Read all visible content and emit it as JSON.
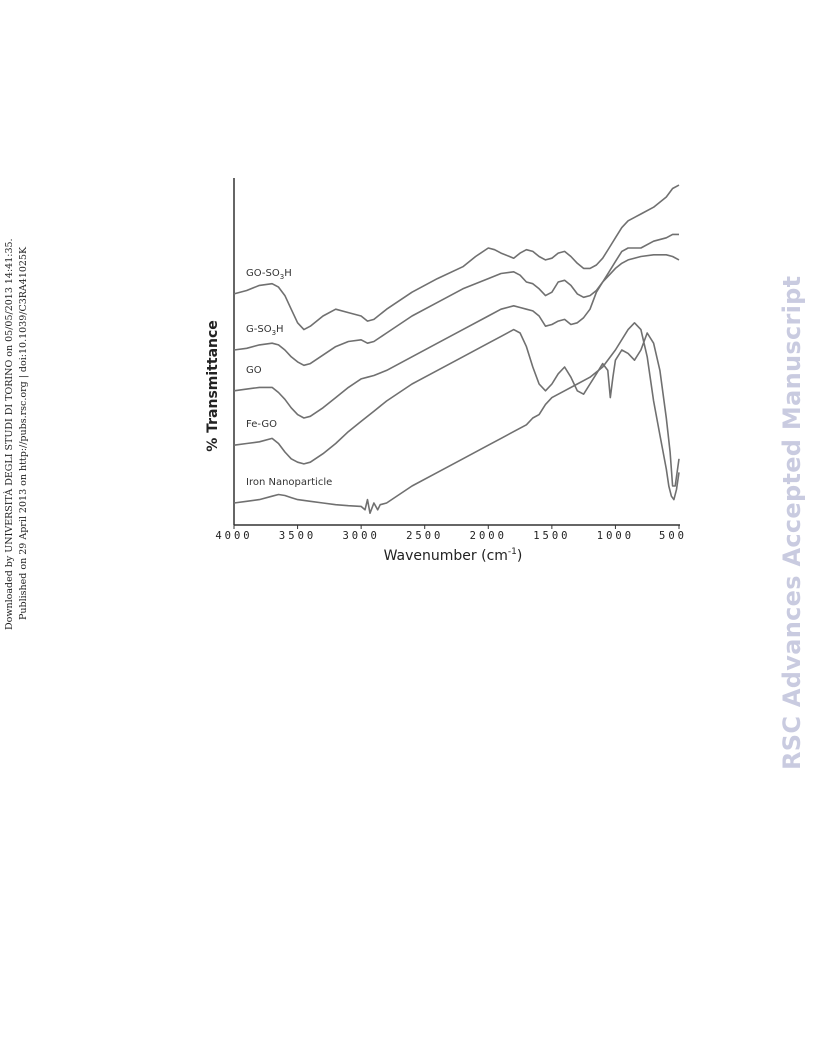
{
  "sidebar": {
    "line1": "Downloaded by UNIVERSITÀ DEGLI STUDI DI TORINO on 05/05/2013 14:41:35.",
    "line2": "Published on 29 April 2013 on http://pubs.rsc.org | doi:10.1039/C3RA41025K"
  },
  "watermark": "RSC Advances Accepted Manuscript",
  "chart_data": {
    "type": "line",
    "xlabel_main": "Wavenumber (cm",
    "xlabel_sup": "-1",
    "xlabel_close": ")",
    "ylabel": "% Transmittance",
    "xlim": [
      4000,
      500
    ],
    "x_reversed": true,
    "ylim": [
      0,
      1
    ],
    "y_tick_labels": false,
    "grid": false,
    "x_ticks": [
      {
        "v": 4000,
        "label": "4000"
      },
      {
        "v": 3500,
        "label": "3500"
      },
      {
        "v": 3000,
        "label": "3000"
      },
      {
        "v": 2500,
        "label": "2500"
      },
      {
        "v": 2000,
        "label": "2000"
      },
      {
        "v": 1500,
        "label": "1500"
      },
      {
        "v": 1000,
        "label": "1000"
      },
      {
        "v": 500,
        "label": "500"
      }
    ],
    "series_labels": [
      {
        "main": "GO-SO",
        "sub": "3",
        "tail": "H",
        "series": 0
      },
      {
        "main": "G-SO",
        "sub": "3",
        "tail": "H",
        "series": 1
      },
      {
        "main": "GO",
        "sub": "",
        "tail": "",
        "series": 2
      },
      {
        "main": "Fe-GO",
        "sub": "",
        "tail": "",
        "series": 3
      },
      {
        "main": "Iron Nanoparticle",
        "sub": "",
        "tail": "",
        "series": 4
      }
    ],
    "series": [
      {
        "x": [
          4000,
          3900,
          3800,
          3700,
          3650,
          3600,
          3550,
          3500,
          3450,
          3400,
          3300,
          3200,
          3100,
          3000,
          2950,
          2900,
          2800,
          2600,
          2400,
          2200,
          2100,
          2000,
          1950,
          1900,
          1800,
          1750,
          1700,
          1650,
          1600,
          1550,
          1500,
          1450,
          1400,
          1350,
          1300,
          1250,
          1200,
          1150,
          1100,
          1050,
          1000,
          950,
          900,
          800,
          700,
          600,
          550,
          500
        ],
        "y": [
          0.665,
          0.675,
          0.69,
          0.695,
          0.685,
          0.66,
          0.62,
          0.58,
          0.56,
          0.57,
          0.6,
          0.62,
          0.61,
          0.6,
          0.585,
          0.59,
          0.62,
          0.67,
          0.71,
          0.745,
          0.775,
          0.8,
          0.795,
          0.785,
          0.77,
          0.785,
          0.795,
          0.79,
          0.775,
          0.765,
          0.77,
          0.785,
          0.79,
          0.775,
          0.755,
          0.74,
          0.74,
          0.75,
          0.77,
          0.8,
          0.83,
          0.86,
          0.88,
          0.9,
          0.92,
          0.95,
          0.975,
          0.985
        ]
      },
      {
        "x": [
          4000,
          3900,
          3800,
          3700,
          3650,
          3600,
          3550,
          3500,
          3450,
          3400,
          3300,
          3200,
          3100,
          3000,
          2950,
          2900,
          2800,
          2600,
          2400,
          2200,
          2000,
          1900,
          1800,
          1750,
          1700,
          1650,
          1600,
          1550,
          1500,
          1450,
          1400,
          1350,
          1300,
          1250,
          1200,
          1150,
          1100,
          1050,
          1000,
          950,
          900,
          800,
          700,
          600,
          550,
          500
        ],
        "y": [
          0.5,
          0.505,
          0.515,
          0.52,
          0.515,
          0.5,
          0.48,
          0.465,
          0.455,
          0.46,
          0.485,
          0.51,
          0.525,
          0.53,
          0.52,
          0.525,
          0.55,
          0.6,
          0.64,
          0.68,
          0.71,
          0.725,
          0.73,
          0.72,
          0.7,
          0.695,
          0.68,
          0.66,
          0.67,
          0.7,
          0.705,
          0.69,
          0.665,
          0.655,
          0.66,
          0.675,
          0.7,
          0.73,
          0.76,
          0.79,
          0.8,
          0.8,
          0.82,
          0.83,
          0.84,
          0.84
        ]
      },
      {
        "x": [
          4000,
          3900,
          3800,
          3700,
          3650,
          3600,
          3550,
          3500,
          3450,
          3400,
          3300,
          3200,
          3100,
          3000,
          2950,
          2900,
          2800,
          2600,
          2400,
          2200,
          2000,
          1900,
          1800,
          1750,
          1700,
          1650,
          1600,
          1550,
          1500,
          1450,
          1400,
          1350,
          1300,
          1250,
          1200,
          1150,
          1100,
          1050,
          1000,
          950,
          900,
          800,
          700,
          600,
          550,
          500
        ],
        "y": [
          0.38,
          0.385,
          0.39,
          0.39,
          0.375,
          0.355,
          0.33,
          0.31,
          0.3,
          0.305,
          0.33,
          0.36,
          0.39,
          0.415,
          0.42,
          0.425,
          0.44,
          0.48,
          0.52,
          0.56,
          0.6,
          0.62,
          0.63,
          0.625,
          0.62,
          0.615,
          0.6,
          0.57,
          0.575,
          0.585,
          0.59,
          0.575,
          0.58,
          0.595,
          0.62,
          0.67,
          0.7,
          0.72,
          0.74,
          0.755,
          0.765,
          0.775,
          0.78,
          0.78,
          0.775,
          0.765
        ]
      },
      {
        "x": [
          4000,
          3900,
          3800,
          3700,
          3650,
          3600,
          3550,
          3500,
          3450,
          3400,
          3300,
          3200,
          3100,
          3000,
          2900,
          2800,
          2600,
          2400,
          2200,
          2000,
          1900,
          1800,
          1750,
          1700,
          1650,
          1600,
          1550,
          1500,
          1450,
          1400,
          1350,
          1300,
          1250,
          1200,
          1150,
          1100,
          1060,
          1040,
          1020,
          1000,
          950,
          900,
          850,
          800,
          750,
          700,
          650,
          600,
          570,
          550,
          530,
          500
        ],
        "y": [
          0.22,
          0.225,
          0.23,
          0.24,
          0.225,
          0.2,
          0.18,
          0.17,
          0.165,
          0.17,
          0.195,
          0.225,
          0.26,
          0.29,
          0.32,
          0.35,
          0.4,
          0.44,
          0.48,
          0.52,
          0.54,
          0.56,
          0.55,
          0.51,
          0.45,
          0.4,
          0.38,
          0.4,
          0.43,
          0.45,
          0.42,
          0.38,
          0.37,
          0.4,
          0.43,
          0.46,
          0.44,
          0.36,
          0.42,
          0.47,
          0.5,
          0.49,
          0.47,
          0.5,
          0.55,
          0.52,
          0.44,
          0.3,
          0.2,
          0.1,
          0.1,
          0.18
        ]
      },
      {
        "x": [
          4000,
          3900,
          3800,
          3700,
          3650,
          3600,
          3550,
          3500,
          3400,
          3300,
          3200,
          3100,
          3000,
          2970,
          2950,
          2930,
          2900,
          2870,
          2850,
          2800,
          2600,
          2400,
          2200,
          2000,
          1900,
          1800,
          1700,
          1650,
          1600,
          1550,
          1500,
          1400,
          1300,
          1200,
          1100,
          1000,
          900,
          850,
          800,
          750,
          700,
          650,
          600,
          580,
          560,
          540,
          520,
          500
        ],
        "y": [
          0.05,
          0.055,
          0.06,
          0.07,
          0.075,
          0.072,
          0.066,
          0.06,
          0.055,
          0.05,
          0.045,
          0.042,
          0.04,
          0.03,
          0.06,
          0.02,
          0.05,
          0.03,
          0.045,
          0.05,
          0.1,
          0.14,
          0.18,
          0.22,
          0.24,
          0.26,
          0.28,
          0.3,
          0.31,
          0.34,
          0.36,
          0.38,
          0.4,
          0.42,
          0.45,
          0.5,
          0.56,
          0.58,
          0.56,
          0.48,
          0.35,
          0.25,
          0.15,
          0.1,
          0.07,
          0.06,
          0.09,
          0.14
        ]
      }
    ]
  }
}
